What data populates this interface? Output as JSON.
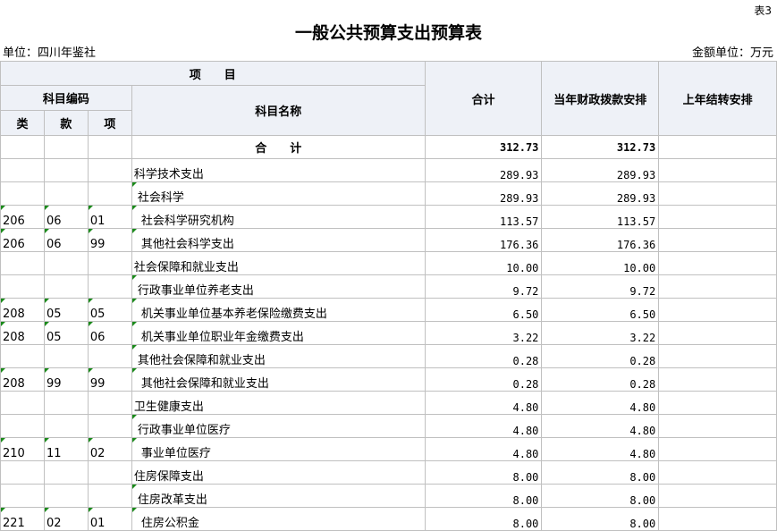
{
  "sheet_tag": "表3",
  "title": "一般公共预算支出预算表",
  "unit": "单位：四川年鉴社",
  "amount_unit": "金额单位：万元",
  "headers": {
    "project": "项　　目",
    "code": "科目编码",
    "lei": "类",
    "kuan": "款",
    "xiang": "项",
    "name": "科目名称",
    "total": "合计",
    "current": "当年财政拨款安排",
    "carryover": "上年结转安排"
  },
  "total_row": {
    "name": "合　　计",
    "total": "312.73",
    "current": "312.73",
    "carryover": ""
  },
  "rows": [
    {
      "lei": "",
      "kuan": "",
      "xiang": "",
      "name": "科学技术支出",
      "level": 1,
      "total": "289.93",
      "current": "289.93",
      "carryover": ""
    },
    {
      "lei": "",
      "kuan": "",
      "xiang": "",
      "name": "社会科学",
      "level": 2,
      "total": "289.93",
      "current": "289.93",
      "carryover": ""
    },
    {
      "lei": "206",
      "kuan": "06",
      "xiang": "01",
      "name": "社会科学研究机构",
      "level": 3,
      "total": "113.57",
      "current": "113.57",
      "carryover": ""
    },
    {
      "lei": "206",
      "kuan": "06",
      "xiang": "99",
      "name": "其他社会科学支出",
      "level": 3,
      "total": "176.36",
      "current": "176.36",
      "carryover": ""
    },
    {
      "lei": "",
      "kuan": "",
      "xiang": "",
      "name": "社会保障和就业支出",
      "level": 1,
      "total": "10.00",
      "current": "10.00",
      "carryover": ""
    },
    {
      "lei": "",
      "kuan": "",
      "xiang": "",
      "name": "行政事业单位养老支出",
      "level": 2,
      "total": "9.72",
      "current": "9.72",
      "carryover": ""
    },
    {
      "lei": "208",
      "kuan": "05",
      "xiang": "05",
      "name": "机关事业单位基本养老保险缴费支出",
      "level": 3,
      "total": "6.50",
      "current": "6.50",
      "carryover": ""
    },
    {
      "lei": "208",
      "kuan": "05",
      "xiang": "06",
      "name": "机关事业单位职业年金缴费支出",
      "level": 3,
      "total": "3.22",
      "current": "3.22",
      "carryover": ""
    },
    {
      "lei": "",
      "kuan": "",
      "xiang": "",
      "name": "其他社会保障和就业支出",
      "level": 2,
      "total": "0.28",
      "current": "0.28",
      "carryover": ""
    },
    {
      "lei": "208",
      "kuan": "99",
      "xiang": "99",
      "name": "其他社会保障和就业支出",
      "level": 3,
      "total": "0.28",
      "current": "0.28",
      "carryover": ""
    },
    {
      "lei": "",
      "kuan": "",
      "xiang": "",
      "name": "卫生健康支出",
      "level": 1,
      "total": "4.80",
      "current": "4.80",
      "carryover": ""
    },
    {
      "lei": "",
      "kuan": "",
      "xiang": "",
      "name": "行政事业单位医疗",
      "level": 2,
      "total": "4.80",
      "current": "4.80",
      "carryover": ""
    },
    {
      "lei": "210",
      "kuan": "11",
      "xiang": "02",
      "name": "事业单位医疗",
      "level": 3,
      "total": "4.80",
      "current": "4.80",
      "carryover": ""
    },
    {
      "lei": "",
      "kuan": "",
      "xiang": "",
      "name": "住房保障支出",
      "level": 1,
      "total": "8.00",
      "current": "8.00",
      "carryover": ""
    },
    {
      "lei": "",
      "kuan": "",
      "xiang": "",
      "name": "住房改革支出",
      "level": 2,
      "total": "8.00",
      "current": "8.00",
      "carryover": ""
    },
    {
      "lei": "221",
      "kuan": "02",
      "xiang": "01",
      "name": "住房公积金",
      "level": 3,
      "total": "8.00",
      "current": "8.00",
      "carryover": ""
    }
  ]
}
